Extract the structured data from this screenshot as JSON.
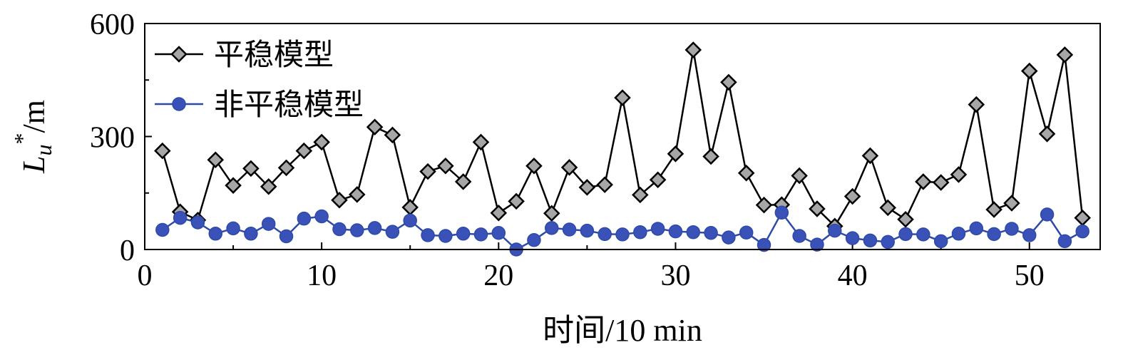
{
  "chart_data": {
    "type": "line",
    "xlabel": "时间/10 min",
    "ylabel": {
      "base": "L",
      "sub": "u",
      "sup": "*",
      "unit": "/m"
    },
    "xlim": [
      0,
      54
    ],
    "ylim": [
      0,
      600
    ],
    "xticks": [
      0,
      10,
      20,
      30,
      40,
      50
    ],
    "yticks": [
      0,
      300,
      600
    ],
    "legend_position": "top-left",
    "grid": false,
    "x": [
      1,
      2,
      3,
      4,
      5,
      6,
      7,
      8,
      9,
      10,
      11,
      12,
      13,
      14,
      15,
      16,
      17,
      18,
      19,
      20,
      21,
      22,
      23,
      24,
      25,
      26,
      27,
      28,
      29,
      30,
      31,
      32,
      33,
      34,
      35,
      36,
      37,
      38,
      39,
      40,
      41,
      42,
      43,
      44,
      45,
      46,
      47,
      48,
      49,
      50,
      51,
      52,
      53
    ],
    "series": [
      {
        "name": "平稳模型",
        "marker": "diamond",
        "line_color": "#000000",
        "marker_fill": "#a6a6a6",
        "values": [
          262,
          100,
          78,
          238,
          170,
          215,
          167,
          217,
          262,
          285,
          131,
          146,
          325,
          304,
          112,
          207,
          222,
          180,
          285,
          97,
          128,
          222,
          96,
          218,
          165,
          172,
          403,
          145,
          185,
          254,
          530,
          247,
          444,
          203,
          118,
          119,
          196,
          108,
          62,
          141,
          249,
          111,
          80,
          180,
          178,
          199,
          385,
          106,
          123,
          474,
          307,
          517,
          84
        ]
      },
      {
        "name": "非平稳模型",
        "marker": "circle",
        "line_color": "#2e4aa8",
        "marker_fill": "#3a52b8",
        "values": [
          52,
          84,
          72,
          42,
          56,
          42,
          68,
          35,
          82,
          88,
          54,
          51,
          57,
          47,
          77,
          38,
          36,
          42,
          40,
          44,
          0,
          25,
          57,
          53,
          50,
          41,
          40,
          46,
          55,
          48,
          46,
          44,
          32,
          45,
          12,
          98,
          36,
          13,
          50,
          30,
          24,
          20,
          41,
          40,
          22,
          42,
          56,
          41,
          55,
          38,
          93,
          22,
          48
        ]
      }
    ]
  }
}
